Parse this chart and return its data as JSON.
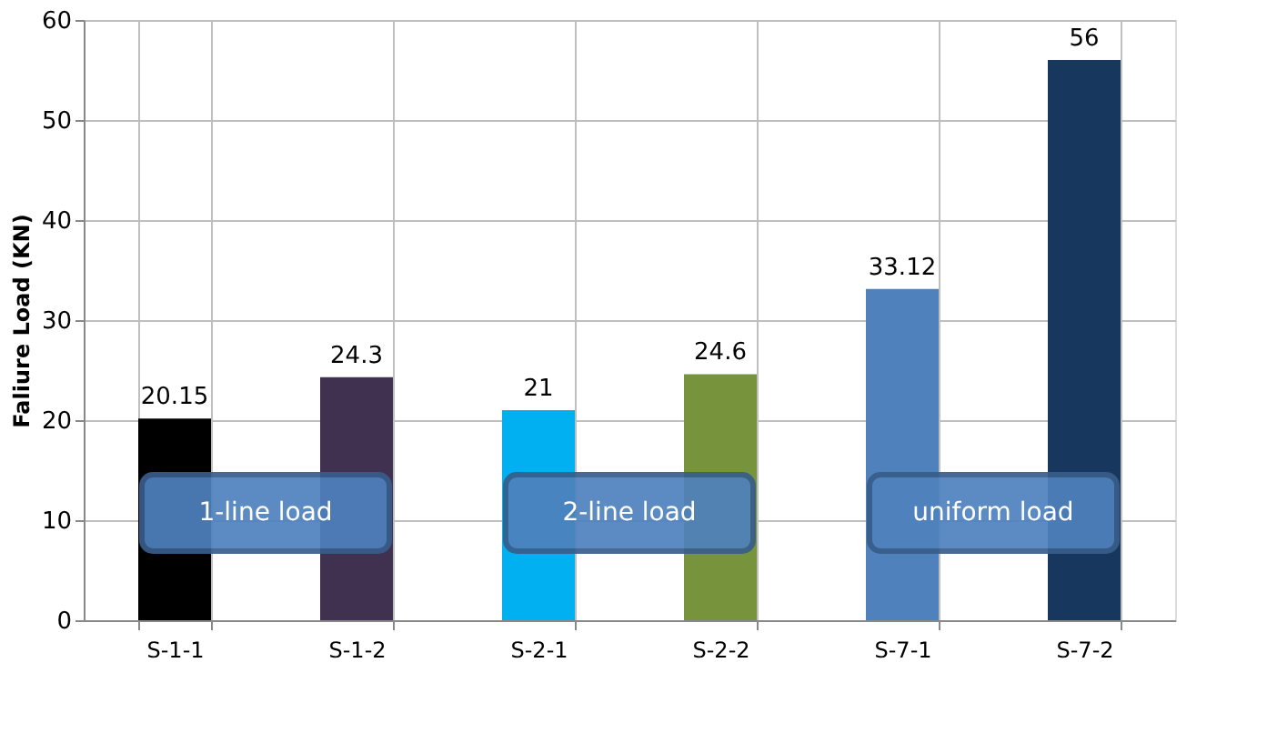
{
  "chart_data": {
    "type": "bar",
    "ylabel": "Faliure Load (KN)",
    "categories": [
      "S-1-1",
      "S-1-2",
      "S-2-1",
      "S-2-2",
      "S-7-1",
      "S-7-2"
    ],
    "values": [
      20.15,
      24.3,
      21,
      24.6,
      33.12,
      56
    ],
    "colors": [
      "#000000",
      "#403151",
      "#00b0f0",
      "#77933c",
      "#4f81bd",
      "#17375e"
    ],
    "ylim": [
      0,
      60
    ],
    "yticks": [
      0,
      10,
      20,
      30,
      40,
      50,
      60
    ],
    "grid": true,
    "data_labels": true,
    "annotations": [
      "1-line load",
      "2-line load",
      "uniform load"
    ]
  }
}
